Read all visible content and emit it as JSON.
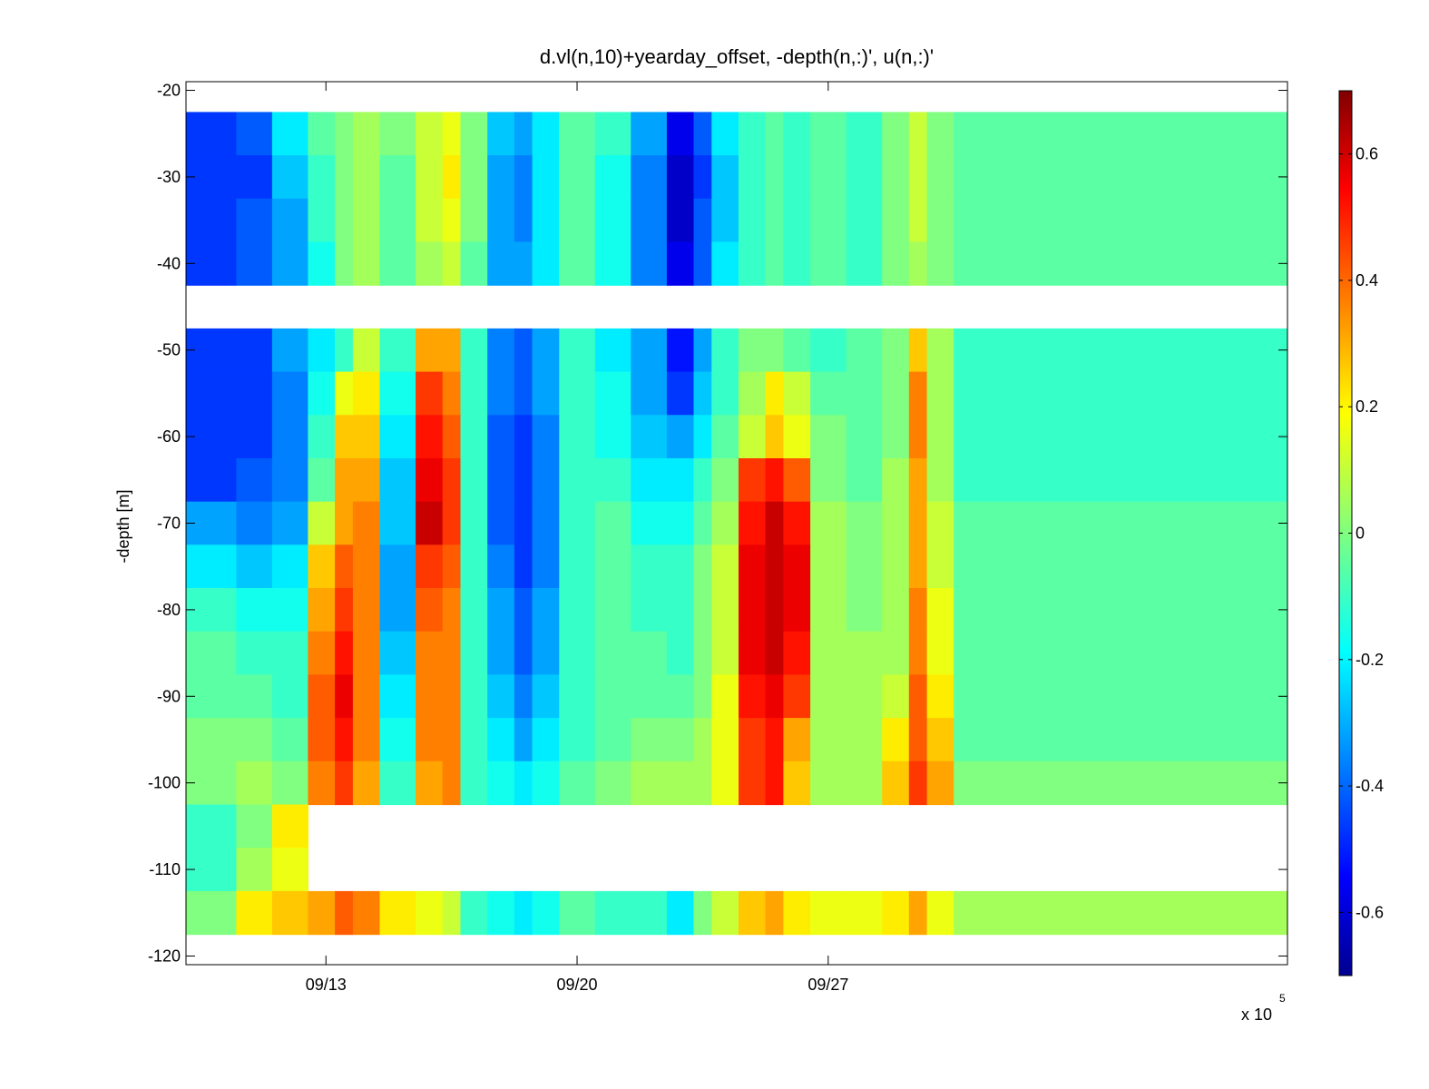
{
  "chart_data": {
    "type": "heatmap",
    "title": "d.vl(n,10)+yearday_offset, -depth(n,:)', u(n,:)'",
    "xlabel": "",
    "ylabel": "-depth [m]",
    "x_multiplier_label": "x 10",
    "x_multiplier_exponent": "5",
    "x_range_days": [
      9.1,
      39.8
    ],
    "x_ticks": [
      {
        "label": "09/13",
        "day": 13
      },
      {
        "label": "09/20",
        "day": 20
      },
      {
        "label": "09/27",
        "day": 27
      }
    ],
    "ylim": [
      -121,
      -19
    ],
    "y_ticks": [
      -20,
      -30,
      -40,
      -50,
      -60,
      -70,
      -80,
      -90,
      -100,
      -110,
      -120
    ],
    "colorbar": {
      "colormap": "jet",
      "clim": [
        -0.7,
        0.7
      ],
      "ticks": [
        0.6,
        0.4,
        0.2,
        0,
        -0.2,
        -0.4,
        -0.6
      ],
      "tick_labels": [
        "0.6",
        "0.4",
        "0.2",
        "0",
        "-0.2",
        "-0.4",
        "-0.6"
      ]
    },
    "depth_bins_m": [
      -25,
      -30,
      -35,
      -40,
      -50,
      -55,
      -60,
      -65,
      -70,
      -75,
      -80,
      -85,
      -90,
      -95,
      -100,
      -105,
      -110,
      -115
    ],
    "data_gaps_m": [
      [
        -45,
        -41
      ],
      [
        -110,
        -101
      ]
    ],
    "time_days": [
      10,
      11,
      12,
      13,
      13.5,
      14,
      15,
      16,
      16.5,
      17,
      18,
      18.5,
      19,
      20,
      21,
      22,
      23,
      23.5,
      24,
      25,
      25.5,
      26,
      27,
      28,
      29,
      29.5,
      30,
      31
    ],
    "u_values": [
      [
        -0.45,
        -0.4,
        -0.2,
        -0.05,
        0.0,
        0.05,
        0.0,
        0.1,
        0.15,
        0.0,
        -0.25,
        -0.3,
        -0.2,
        -0.05,
        -0.1,
        -0.3,
        -0.55,
        -0.4,
        -0.2,
        -0.1,
        -0.05,
        -0.1,
        -0.05,
        -0.1,
        0.0,
        0.1,
        0.0,
        -0.05
      ],
      [
        -0.45,
        -0.45,
        -0.25,
        -0.1,
        0.0,
        0.05,
        -0.05,
        0.1,
        0.2,
        0.0,
        -0.3,
        -0.35,
        -0.2,
        -0.05,
        -0.15,
        -0.35,
        -0.6,
        -0.45,
        -0.25,
        -0.1,
        -0.05,
        -0.1,
        -0.05,
        -0.1,
        0.0,
        0.1,
        0.0,
        -0.05
      ],
      [
        -0.45,
        -0.4,
        -0.3,
        -0.1,
        0.0,
        0.05,
        -0.05,
        0.1,
        0.15,
        0.0,
        -0.3,
        -0.35,
        -0.2,
        -0.05,
        -0.15,
        -0.35,
        -0.6,
        -0.4,
        -0.25,
        -0.1,
        -0.05,
        -0.1,
        -0.05,
        -0.1,
        0.0,
        0.1,
        0.0,
        -0.05
      ],
      [
        -0.45,
        -0.4,
        -0.3,
        -0.15,
        0.0,
        0.05,
        -0.05,
        0.05,
        0.1,
        -0.05,
        -0.3,
        -0.3,
        -0.2,
        -0.05,
        -0.15,
        -0.35,
        -0.55,
        -0.4,
        -0.2,
        -0.1,
        -0.05,
        -0.1,
        -0.05,
        -0.1,
        0.0,
        0.05,
        0.0,
        -0.05
      ],
      [
        -0.45,
        -0.45,
        -0.3,
        -0.2,
        -0.1,
        0.1,
        -0.1,
        0.3,
        0.3,
        -0.1,
        -0.35,
        -0.4,
        -0.3,
        -0.1,
        -0.2,
        -0.3,
        -0.5,
        -0.3,
        -0.1,
        0.0,
        0.0,
        -0.05,
        -0.1,
        -0.05,
        0.0,
        0.25,
        0.05,
        -0.1
      ],
      [
        -0.45,
        -0.45,
        -0.35,
        -0.15,
        0.15,
        0.2,
        -0.15,
        0.45,
        0.35,
        -0.1,
        -0.35,
        -0.4,
        -0.3,
        -0.1,
        -0.15,
        -0.3,
        -0.45,
        -0.25,
        -0.1,
        0.05,
        0.2,
        0.1,
        -0.05,
        -0.05,
        0.0,
        0.35,
        0.05,
        -0.1
      ],
      [
        -0.45,
        -0.45,
        -0.35,
        -0.1,
        0.25,
        0.25,
        -0.2,
        0.5,
        0.4,
        -0.1,
        -0.4,
        -0.45,
        -0.35,
        -0.1,
        -0.15,
        -0.25,
        -0.3,
        -0.2,
        -0.05,
        0.1,
        0.25,
        0.15,
        0.0,
        -0.05,
        0.0,
        0.35,
        0.05,
        -0.1
      ],
      [
        -0.45,
        -0.4,
        -0.35,
        -0.05,
        0.3,
        0.3,
        -0.25,
        0.55,
        0.45,
        -0.1,
        -0.4,
        -0.45,
        -0.35,
        -0.1,
        -0.1,
        -0.2,
        -0.2,
        -0.1,
        0.0,
        0.45,
        0.5,
        0.4,
        0.0,
        -0.05,
        0.05,
        0.3,
        0.05,
        -0.1
      ],
      [
        -0.3,
        -0.35,
        -0.3,
        0.1,
        0.3,
        0.35,
        -0.25,
        0.6,
        0.45,
        -0.1,
        -0.4,
        -0.45,
        -0.35,
        -0.1,
        -0.05,
        -0.15,
        -0.15,
        -0.05,
        0.05,
        0.5,
        0.6,
        0.5,
        0.05,
        0.0,
        0.05,
        0.3,
        0.1,
        -0.05
      ],
      [
        -0.2,
        -0.25,
        -0.2,
        0.25,
        0.4,
        0.35,
        -0.3,
        0.45,
        0.4,
        -0.1,
        -0.35,
        -0.45,
        -0.35,
        -0.1,
        -0.05,
        -0.1,
        -0.1,
        0.0,
        0.1,
        0.55,
        0.6,
        0.55,
        0.05,
        0.0,
        0.05,
        0.3,
        0.1,
        -0.05
      ],
      [
        -0.1,
        -0.15,
        -0.15,
        0.3,
        0.45,
        0.35,
        -0.3,
        0.4,
        0.35,
        -0.1,
        -0.3,
        -0.4,
        -0.3,
        -0.1,
        -0.05,
        -0.1,
        -0.1,
        0.0,
        0.1,
        0.55,
        0.6,
        0.55,
        0.05,
        0.0,
        0.05,
        0.35,
        0.15,
        -0.05
      ],
      [
        -0.05,
        -0.1,
        -0.1,
        0.35,
        0.5,
        0.35,
        -0.25,
        0.35,
        0.35,
        -0.1,
        -0.3,
        -0.4,
        -0.3,
        -0.1,
        -0.05,
        -0.05,
        -0.1,
        0.0,
        0.1,
        0.55,
        0.6,
        0.5,
        0.05,
        0.05,
        0.05,
        0.35,
        0.15,
        -0.05
      ],
      [
        -0.05,
        -0.05,
        -0.1,
        0.4,
        0.55,
        0.35,
        -0.2,
        0.35,
        0.35,
        -0.1,
        -0.25,
        -0.35,
        -0.25,
        -0.1,
        -0.05,
        -0.05,
        -0.05,
        0.0,
        0.15,
        0.5,
        0.55,
        0.45,
        0.05,
        0.05,
        0.1,
        0.4,
        0.2,
        -0.05
      ],
      [
        0.0,
        0.0,
        -0.05,
        0.4,
        0.5,
        0.35,
        -0.15,
        0.35,
        0.35,
        -0.1,
        -0.2,
        -0.3,
        -0.2,
        -0.1,
        -0.05,
        0.0,
        0.0,
        0.05,
        0.15,
        0.45,
        0.5,
        0.3,
        0.05,
        0.05,
        0.2,
        0.4,
        0.25,
        -0.05
      ],
      [
        0.0,
        0.05,
        0.0,
        0.35,
        0.45,
        0.3,
        -0.1,
        0.3,
        0.35,
        -0.1,
        -0.15,
        -0.2,
        -0.15,
        -0.05,
        0.0,
        0.05,
        0.05,
        0.05,
        0.15,
        0.45,
        0.5,
        0.25,
        0.05,
        0.05,
        0.25,
        0.45,
        0.3,
        0.0
      ],
      [
        -0.1,
        0.0,
        0.2,
        null,
        null,
        null,
        null,
        null,
        null,
        null,
        null,
        null,
        null,
        null,
        null,
        null,
        null,
        null,
        null,
        null,
        null,
        null,
        null,
        null,
        null,
        null,
        null,
        null
      ],
      [
        -0.1,
        0.05,
        0.15,
        null,
        null,
        null,
        null,
        null,
        null,
        null,
        null,
        null,
        null,
        null,
        null,
        null,
        null,
        null,
        null,
        null,
        null,
        null,
        null,
        null,
        null,
        null,
        null,
        null
      ],
      [
        0.0,
        0.2,
        0.25,
        0.3,
        0.4,
        0.35,
        0.2,
        0.15,
        0.1,
        -0.1,
        -0.15,
        -0.2,
        -0.15,
        -0.05,
        -0.1,
        -0.1,
        -0.2,
        0.0,
        0.1,
        0.25,
        0.3,
        0.2,
        0.15,
        0.15,
        0.2,
        0.3,
        0.15,
        0.05
      ]
    ]
  }
}
